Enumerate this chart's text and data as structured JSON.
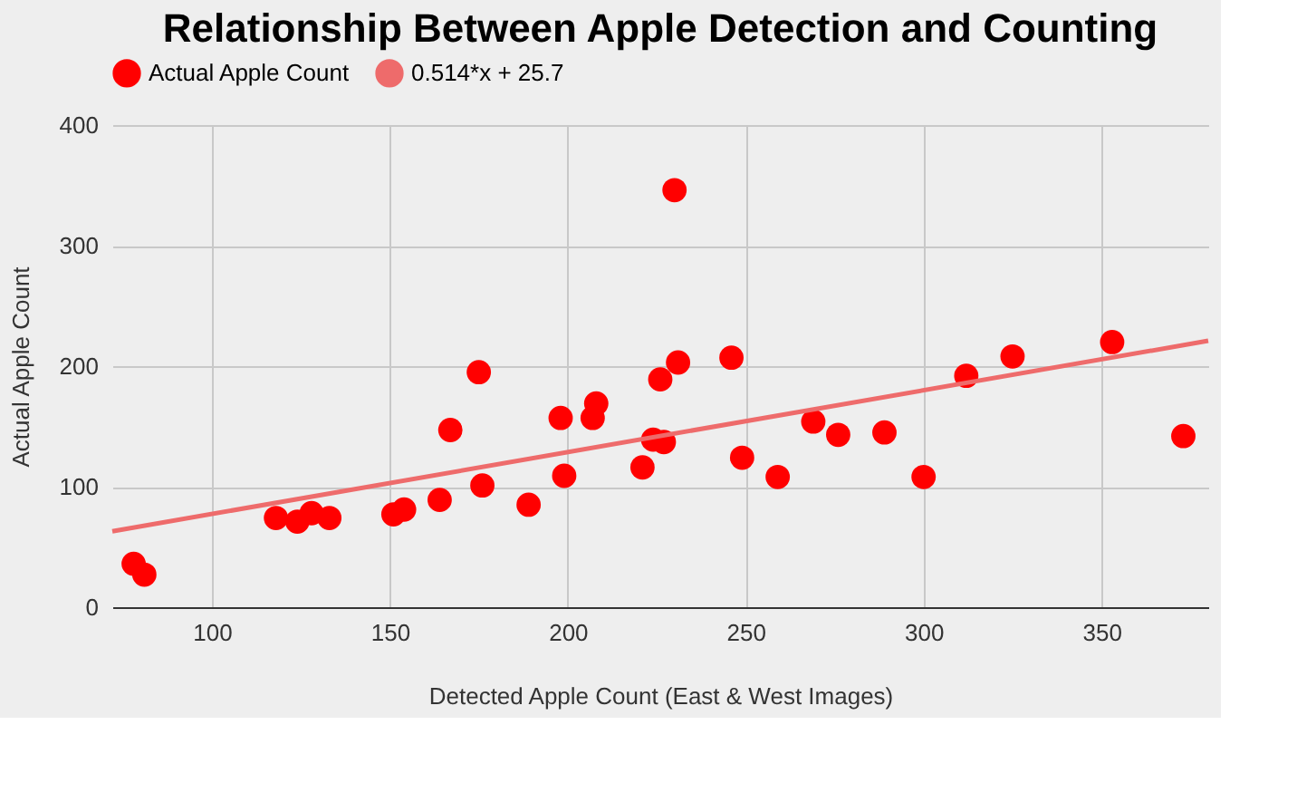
{
  "chart_data": {
    "type": "scatter",
    "title": "Relationship Between Apple Detection and Counting",
    "xlabel": "Detected Apple Count (East & West Images)",
    "ylabel": "Actual Apple Count",
    "series": [
      {
        "name": "Actual Apple Count",
        "color": "#ff0000",
        "marker": "circle",
        "x": [
          78,
          81,
          118,
          124,
          128,
          133,
          151,
          154,
          164,
          167,
          175,
          176,
          189,
          198,
          199,
          207,
          208,
          221,
          224,
          226,
          227,
          230,
          231,
          246,
          249,
          259,
          269,
          276,
          289,
          300,
          312,
          325,
          353,
          373
        ],
        "values": [
          36,
          27,
          74,
          71,
          78,
          74,
          77,
          81,
          89,
          147,
          195,
          101,
          85,
          157,
          109,
          157,
          169,
          116,
          139,
          189,
          137,
          346,
          203,
          207,
          124,
          108,
          154,
          143,
          145,
          108,
          192,
          208,
          220,
          142
        ]
      },
      {
        "name": "0.514*x + 25.7",
        "type": "line",
        "color": "#ee6b6b",
        "line_style": "solid",
        "x": [
          72,
          380
        ],
        "values": [
          63,
          221
        ]
      }
    ],
    "xlim": [
      72,
      380
    ],
    "xticks": [
      100,
      150,
      200,
      250,
      300,
      350
    ],
    "ylim": [
      0,
      400
    ],
    "yticks": [
      0,
      100,
      200,
      300,
      400
    ],
    "grid": true,
    "legend": "top"
  }
}
